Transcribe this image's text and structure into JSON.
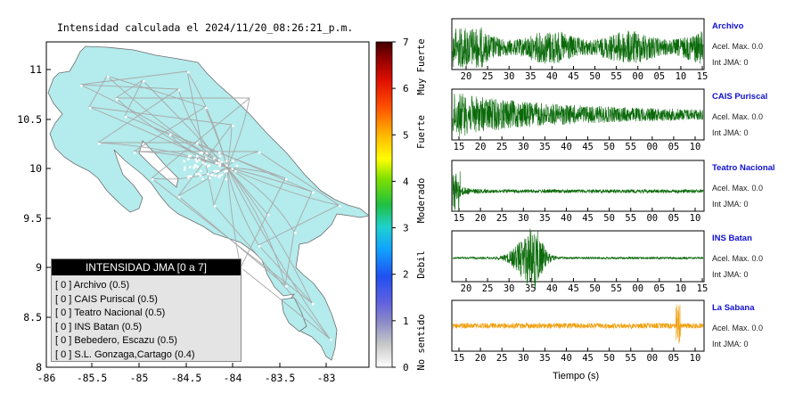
{
  "map": {
    "title": "Intensidad calculada el 2024/11/20_08:26:21_p.m.",
    "x_ticks": [
      "-86",
      "-85.5",
      "-85",
      "-84.5",
      "-84",
      "-83.5",
      "-83"
    ],
    "y_ticks": [
      "11",
      "10.5",
      "10",
      "9.5",
      "9",
      "8.5",
      "8"
    ],
    "land_color": "#b4ebec",
    "road_color": "#a8a8a8"
  },
  "colorbar": {
    "ticks": [
      "0",
      "1",
      "2",
      "3",
      "4",
      "5",
      "6",
      "7"
    ],
    "labels": [
      "No sentido",
      "Debil",
      "Moderado",
      "Fuerte",
      "Muy Fuerte"
    ]
  },
  "legend": {
    "title": "INTENSIDAD JMA [0 a 7]",
    "rows": [
      "[ 0 ]  Archivo (0.5)",
      "[ 0 ]  CAIS Puriscal (0.5)",
      "[ 0 ]  Teatro Nacional (0.5)",
      "[ 0 ]  INS Batan (0.5)",
      "[ 0 ]  Bebedero, Escazu (0.5)",
      "[ 0 ]  S.L. Gonzaga,Cartago (0.4)"
    ]
  },
  "seismograms": [
    {
      "name": "Archivo",
      "accel": "Acel. Max. 0.0",
      "int": "Int JMA: 0",
      "ticks": [
        "20",
        "25",
        "30",
        "35",
        "40",
        "45",
        "50",
        "55",
        "00",
        "05",
        "10",
        "15"
      ],
      "color": "#0a6a0a",
      "profile": "archivo"
    },
    {
      "name": "CAIS Puriscal",
      "accel": "Acel. Max. 0.0",
      "int": "Int JMA: 0",
      "ticks": [
        "15",
        "20",
        "25",
        "30",
        "35",
        "40",
        "45",
        "50",
        "55",
        "00",
        "05",
        "10"
      ],
      "color": "#0a6a0a",
      "profile": "puriscal"
    },
    {
      "name": "Teatro Nacional",
      "accel": "Acel. Max. 0.0",
      "int": "Int JMA: 0",
      "ticks": [
        "15",
        "20",
        "25",
        "30",
        "35",
        "40",
        "45",
        "50",
        "55",
        "00",
        "05",
        "10"
      ],
      "color": "#0a6a0a",
      "profile": "teatro"
    },
    {
      "name": "INS Batan",
      "accel": "Acel. Max. 0.0",
      "int": "Int JMA: 0",
      "ticks": [
        "20",
        "25",
        "30",
        "35",
        "40",
        "45",
        "50",
        "55",
        "00",
        "05",
        "10",
        "15"
      ],
      "color": "#0a6a0a",
      "profile": "batan"
    },
    {
      "name": "La Sabana",
      "accel": "Acel. Max. 0.0",
      "int": "Int JMA: 0",
      "ticks": [
        "15",
        "20",
        "25",
        "30",
        "35",
        "40",
        "45",
        "50",
        "55",
        "00",
        "05",
        "10"
      ],
      "color": "#f0a010",
      "profile": "sabana"
    }
  ],
  "xlabel": "Tiempo (s)"
}
